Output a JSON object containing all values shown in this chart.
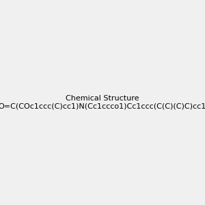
{
  "smiles": "O=C(COc1ccc(C)cc1)N(Cc1ccco1)Cc1ccc(C(C)(C)C)cc1",
  "image_size": 300,
  "background_color": "#f0f0f0"
}
